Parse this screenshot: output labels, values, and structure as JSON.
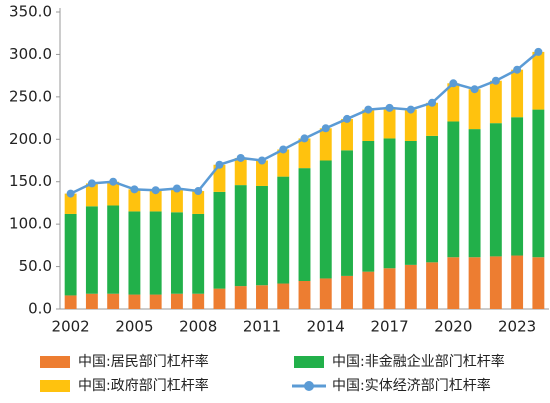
{
  "chart_data": {
    "type": "bar",
    "categories": [
      "2002",
      null,
      null,
      "2005",
      null,
      null,
      "2008",
      null,
      null,
      "2011",
      null,
      null,
      "2014",
      null,
      null,
      "2017",
      null,
      null,
      "2020",
      null,
      null,
      "2023",
      null
    ],
    "stacked": true,
    "series": [
      {
        "name": "中国:居民部门杠杆率",
        "color": "#ed7d31",
        "values": [
          16,
          18,
          18,
          17,
          17,
          18,
          18,
          24,
          27,
          28,
          30,
          33,
          36,
          39,
          44,
          48,
          52,
          55,
          61,
          61,
          62,
          63,
          61
        ]
      },
      {
        "name": "中国:非金融企业部门杠杆率",
        "color": "#22b04a",
        "values": [
          96,
          103,
          104,
          98,
          98,
          96,
          94,
          114,
          119,
          117,
          126,
          133,
          139,
          148,
          154,
          153,
          146,
          149,
          160,
          151,
          157,
          163,
          174
        ]
      },
      {
        "name": "中国:政府部门杠杆率",
        "color": "#ffc20e",
        "values": [
          24,
          27,
          28,
          26,
          25,
          28,
          27,
          32,
          32,
          30,
          32,
          35,
          38,
          37,
          37,
          36,
          37,
          39,
          45,
          47,
          50,
          56,
          68
        ]
      },
      {
        "name": "中国:实体经济部门杠杆率",
        "color": "#5b9bd5",
        "type": "line",
        "values": [
          136,
          148,
          150,
          141,
          140,
          142,
          139,
          170,
          178,
          175,
          188,
          201,
          213,
          224,
          235,
          237,
          235,
          243,
          266,
          259,
          269,
          282,
          303
        ]
      }
    ],
    "ylim": [
      0,
      350
    ],
    "yticks": [
      {
        "value": 0,
        "label": "0.0"
      },
      {
        "value": 50,
        "label": "50.0"
      },
      {
        "value": 100,
        "label": "100.0"
      },
      {
        "value": 150,
        "label": "150.0"
      },
      {
        "value": 200,
        "label": "200.0"
      },
      {
        "value": 250,
        "label": "250.0"
      },
      {
        "value": 300,
        "label": "300.0"
      },
      {
        "value": 350,
        "label": "350.0"
      }
    ],
    "legend": "bottom"
  }
}
